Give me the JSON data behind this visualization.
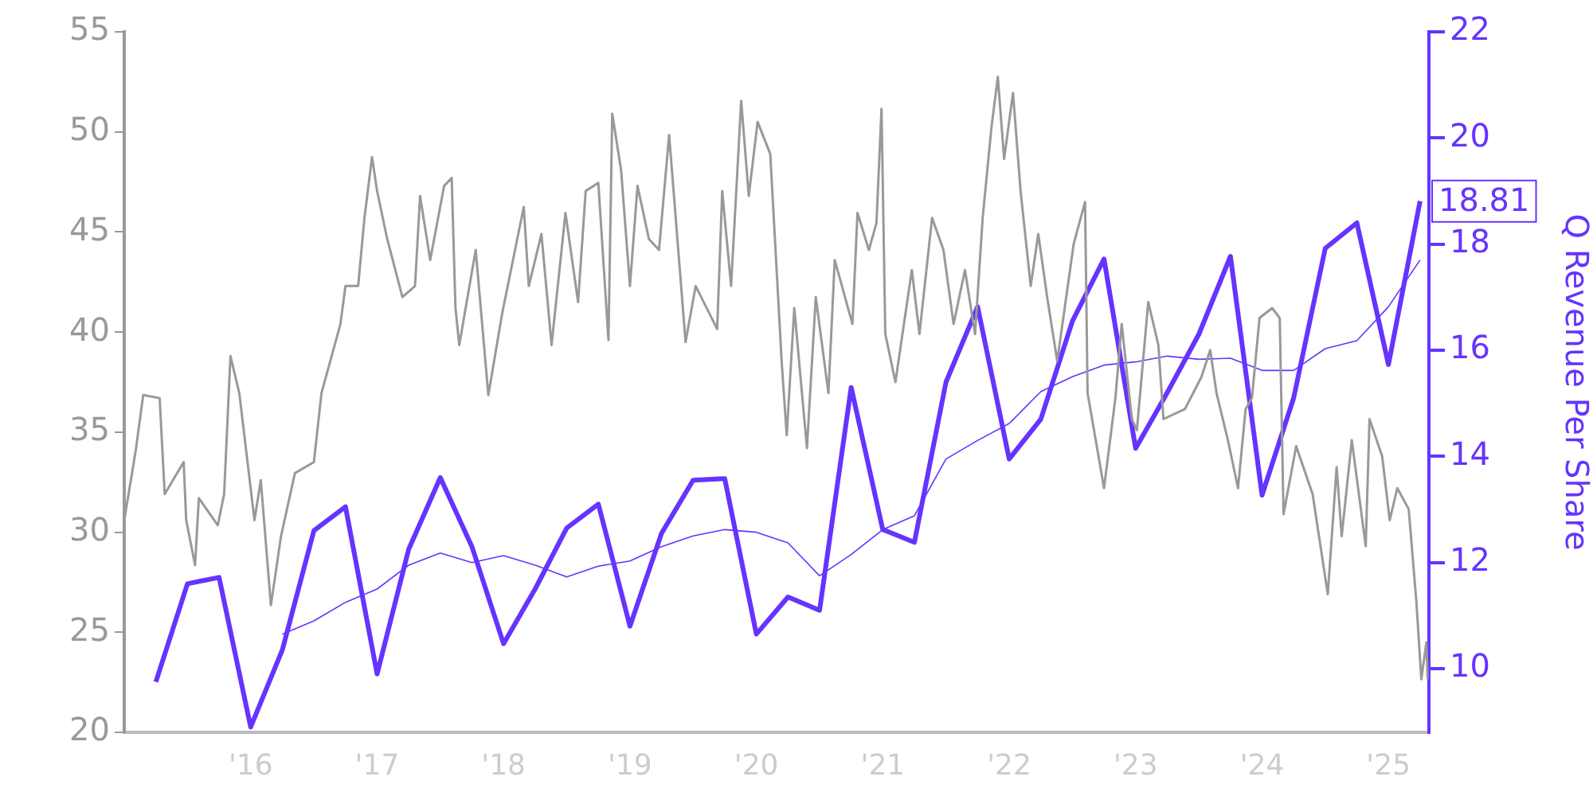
{
  "chart_data": {
    "type": "line",
    "y2label": "Q Revenue Per Share",
    "xlim": [
      2015,
      2025.32
    ],
    "xticks": [
      {
        "value": 2016,
        "label": "'16"
      },
      {
        "value": 2017,
        "label": "'17"
      },
      {
        "value": 2018,
        "label": "'18"
      },
      {
        "value": 2019,
        "label": "'19"
      },
      {
        "value": 2020,
        "label": "'20"
      },
      {
        "value": 2021,
        "label": "'21"
      },
      {
        "value": 2022,
        "label": "'22"
      },
      {
        "value": 2023,
        "label": "'23"
      },
      {
        "value": 2024,
        "label": "'24"
      },
      {
        "value": 2025,
        "label": "'25"
      }
    ],
    "ylim": [
      20,
      55
    ],
    "yticks": [
      20,
      25,
      30,
      35,
      40,
      45,
      50,
      55
    ],
    "y2lim": [
      8.8,
      22
    ],
    "y2ticks": [
      10,
      12,
      14,
      16,
      18,
      20,
      22
    ],
    "grid": false,
    "legend": false,
    "marker": "none",
    "line_style": "solid",
    "annotations": [
      "18.81"
    ],
    "series": [
      {
        "color": "#999999",
        "x": [
          2015.0,
          2015.09,
          2015.15,
          2015.28,
          2015.32,
          2015.47,
          2015.49,
          2015.56,
          2015.59,
          2015.74,
          2015.79,
          2015.84,
          2015.91,
          2016.03,
          2016.08,
          2016.16,
          2016.24,
          2016.35,
          2016.5,
          2016.56,
          2016.71,
          2016.75,
          2016.85,
          2016.9,
          2016.96,
          2017.0,
          2017.08,
          2017.2,
          2017.3,
          2017.34,
          2017.42,
          2017.53,
          2017.59,
          2017.62,
          2017.65,
          2017.78,
          2017.88,
          2017.99,
          2018.16,
          2018.2,
          2018.3,
          2018.38,
          2018.49,
          2018.59,
          2018.65,
          2018.75,
          2018.83,
          2018.86,
          2018.93,
          2019.0,
          2019.06,
          2019.15,
          2019.23,
          2019.31,
          2019.44,
          2019.52,
          2019.69,
          2019.73,
          2019.8,
          2019.88,
          2019.94,
          2020.01,
          2020.11,
          2020.2,
          2020.24,
          2020.3,
          2020.4,
          2020.47,
          2020.57,
          2020.62,
          2020.76,
          2020.8,
          2020.89,
          2020.95,
          2020.99,
          2021.02,
          2021.1,
          2021.23,
          2021.29,
          2021.39,
          2021.48,
          2021.56,
          2021.65,
          2021.73,
          2021.79,
          2021.86,
          2021.91,
          2021.96,
          2022.03,
          2022.09,
          2022.17,
          2022.23,
          2022.3,
          2022.38,
          2022.51,
          2022.6,
          2022.62,
          2022.75,
          2022.84,
          2022.89,
          2022.97,
          2023.01,
          2023.1,
          2023.18,
          2023.22,
          2023.39,
          2023.52,
          2023.59,
          2023.64,
          2023.73,
          2023.81,
          2023.87,
          2023.92,
          2023.98,
          2024.08,
          2024.14,
          2024.17,
          2024.27,
          2024.4,
          2024.52,
          2024.59,
          2024.63,
          2024.71,
          2024.82,
          2024.85,
          2024.95,
          2025.01,
          2025.07,
          2025.16,
          2025.22,
          2025.26,
          2025.3,
          2025.31
        ],
        "values": [
          30.6,
          34.05,
          36.85,
          36.7,
          31.9,
          33.5,
          30.6,
          28.35,
          31.7,
          30.35,
          31.9,
          38.8,
          36.95,
          30.6,
          32.6,
          26.35,
          29.8,
          32.95,
          33.5,
          36.95,
          40.4,
          42.3,
          42.3,
          45.7,
          48.75,
          47.05,
          44.65,
          41.75,
          42.3,
          46.8,
          43.6,
          47.3,
          47.7,
          41.2,
          39.35,
          44.1,
          36.85,
          40.95,
          46.25,
          42.3,
          44.9,
          39.35,
          45.95,
          41.5,
          47.05,
          47.45,
          39.6,
          50.9,
          48.1,
          42.3,
          47.3,
          44.65,
          44.1,
          49.85,
          39.5,
          42.3,
          40.15,
          47.05,
          42.3,
          51.55,
          46.8,
          50.5,
          48.9,
          38.55,
          34.85,
          41.2,
          34.2,
          41.75,
          36.95,
          43.6,
          40.4,
          45.95,
          44.1,
          45.45,
          51.15,
          39.9,
          37.5,
          43.1,
          39.9,
          45.7,
          44.1,
          40.4,
          43.1,
          39.9,
          45.7,
          50.25,
          52.75,
          48.65,
          51.95,
          47.05,
          42.3,
          44.9,
          41.75,
          38.55,
          44.4,
          46.5,
          36.95,
          32.2,
          36.7,
          40.4,
          35.65,
          35.1,
          41.5,
          39.35,
          35.65,
          36.15,
          37.75,
          39.1,
          36.95,
          34.6,
          32.2,
          36.15,
          36.7,
          40.7,
          41.2,
          40.7,
          30.9,
          34.3,
          31.9,
          26.9,
          33.25,
          29.8,
          34.6,
          29.3,
          35.65,
          33.8,
          30.6,
          32.2,
          31.15,
          26.6,
          22.65,
          24.5,
          22.65
        ]
      },
      {
        "color": "#6633ff",
        "axis": "y2",
        "x": [
          2015.25,
          2015.5,
          2015.75,
          2016,
          2016.25,
          2016.5,
          2016.75,
          2017,
          2017.25,
          2017.5,
          2017.75,
          2018,
          2018.25,
          2018.5,
          2018.75,
          2019,
          2019.25,
          2019.5,
          2019.75,
          2020,
          2020.25,
          2020.5,
          2020.75,
          2021,
          2021.25,
          2021.5,
          2021.75,
          2022,
          2022.25,
          2022.5,
          2022.75,
          2023,
          2023.25,
          2023.5,
          2023.75,
          2024,
          2024.25,
          2024.5,
          2024.75,
          2025,
          2025.25
        ],
        "values": [
          9.75,
          11.6,
          11.72,
          8.9,
          10.35,
          12.6,
          13.05,
          9.9,
          12.25,
          13.6,
          12.3,
          10.47,
          11.5,
          12.65,
          13.1,
          10.8,
          12.55,
          13.55,
          13.58,
          10.65,
          11.35,
          11.1,
          15.3,
          12.62,
          12.38,
          15.4,
          16.82,
          13.95,
          14.7,
          16.55,
          17.72,
          14.15,
          15.2,
          16.3,
          17.77,
          13.27,
          15.1,
          17.92,
          18.4,
          15.73,
          18.81
        ]
      },
      {
        "color": "#6633ff",
        "axis": "y2",
        "x": [
          2016.25,
          2016.5,
          2016.75,
          2017,
          2017.25,
          2017.5,
          2017.75,
          2018,
          2018.25,
          2018.5,
          2018.75,
          2019,
          2019.25,
          2019.5,
          2019.75,
          2020,
          2020.25,
          2020.5,
          2020.75,
          2021,
          2021.25,
          2021.5,
          2021.75,
          2022,
          2022.25,
          2022.5,
          2022.75,
          2023,
          2023.25,
          2023.5,
          2023.75,
          2024,
          2024.25,
          2024.5,
          2024.75,
          2025,
          2025.25
        ],
        "values": [
          10.65,
          10.9,
          11.25,
          11.5,
          11.95,
          12.18,
          12.0,
          12.13,
          11.95,
          11.73,
          11.93,
          12.03,
          12.3,
          12.5,
          12.62,
          12.57,
          12.37,
          11.75,
          12.15,
          12.62,
          12.88,
          13.95,
          14.3,
          14.62,
          15.22,
          15.5,
          15.72,
          15.78,
          15.89,
          15.83,
          15.85,
          15.62,
          15.62,
          16.03,
          16.18,
          16.82,
          17.7
        ]
      }
    ]
  }
}
